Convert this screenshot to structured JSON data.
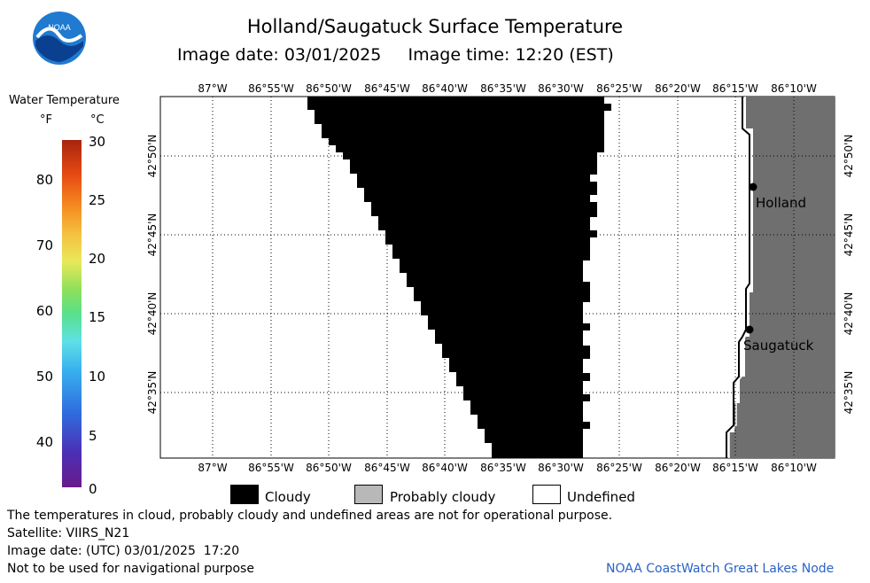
{
  "title": "Holland/Saugatuck Surface Temperature",
  "image_date_label": "Image date: 03/01/2025",
  "image_time_label": "Image time: 12:20 (EST)",
  "logo_text": "NOAA",
  "colorbar": {
    "title": "Water Temperature",
    "unit_f": "°F",
    "unit_c": "°C",
    "f_ticks": [
      "80",
      "70",
      "60",
      "50",
      "40"
    ],
    "c_ticks": [
      "30",
      "25",
      "20",
      "15",
      "10",
      "5",
      "0"
    ]
  },
  "map": {
    "lon_labels": [
      "87°W",
      "86°55'W",
      "86°50'W",
      "86°45'W",
      "86°40'W",
      "86°35'W",
      "86°30'W",
      "86°25'W",
      "86°20'W",
      "86°15'W",
      "86°10'W"
    ],
    "lat_labels": [
      "42°50'N",
      "42°45'N",
      "42°40'N",
      "42°35'N"
    ],
    "cities": [
      {
        "name": "Holland",
        "lon": -86.21,
        "lat": 42.79
      },
      {
        "name": "Saugatuck",
        "lon": -86.2,
        "lat": 42.65
      }
    ],
    "colors": {
      "cloudy": "#000000",
      "land": "#6f6f6f",
      "undefined": "#ffffff"
    }
  },
  "legend": {
    "cloudy": "Cloudy",
    "probably_cloudy": "Probably cloudy",
    "undefined": "Undefined"
  },
  "footer": {
    "disclaimer": "The temperatures in cloud, probably cloudy and undefined areas are not for operational purpose.",
    "satellite": "Satellite: VIIRS_N21",
    "utc_date": "Image date: (UTC) 03/01/2025  17:20",
    "nav_warning": "Not to be used for navigational purpose",
    "credit": "NOAA CoastWatch Great Lakes Node"
  }
}
